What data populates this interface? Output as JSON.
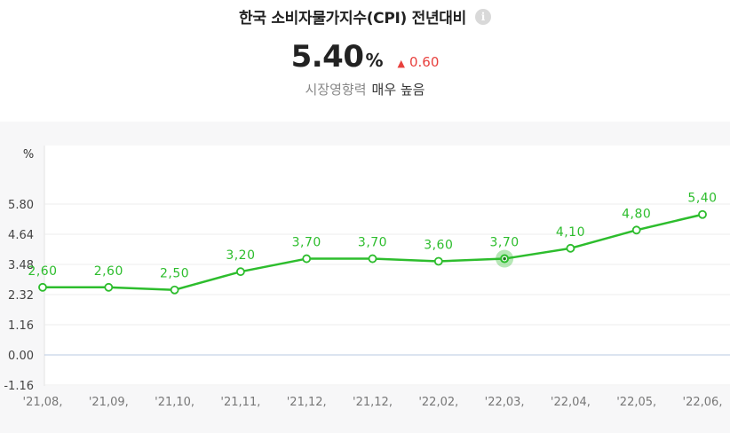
{
  "header": {
    "title": "한국 소비자물가지수(CPI) 전년대비",
    "info_icon": "info-icon",
    "value": "5.40",
    "unit": "%",
    "change": "0.60",
    "change_direction": "up",
    "change_color": "#e8413e",
    "impact_label": "시장영향력",
    "impact_value": "매우 높음"
  },
  "chart_data": {
    "type": "line",
    "ylabel": "%",
    "y_ticks": [
      "5.80",
      "4.64",
      "3.48",
      "2.32",
      "1.16",
      "0.00",
      "-1.16"
    ],
    "ylim": [
      -1.16,
      5.8
    ],
    "categories": [
      "'21,08,",
      "'21,09,",
      "'21,10,",
      "'21,11,",
      "'21,12,",
      "'21,12,",
      "'22,02,",
      "'22,03,",
      "'22,04,",
      "'22,05,",
      "'22,06,"
    ],
    "series": [
      {
        "values": [
          2.6,
          2.6,
          2.5,
          3.2,
          3.7,
          3.7,
          3.6,
          3.7,
          4.1,
          4.8,
          5.4
        ],
        "labels": [
          "2,60",
          "2,60",
          "2,50",
          "3,20",
          "3,70",
          "3,70",
          "3,60",
          "3,70",
          "4,10",
          "4,80",
          "5,40"
        ],
        "color": "#2dbd2d"
      }
    ],
    "highlighted_index": 7,
    "grid": "horizontal",
    "zero_line_color": "#b8c8e0"
  }
}
